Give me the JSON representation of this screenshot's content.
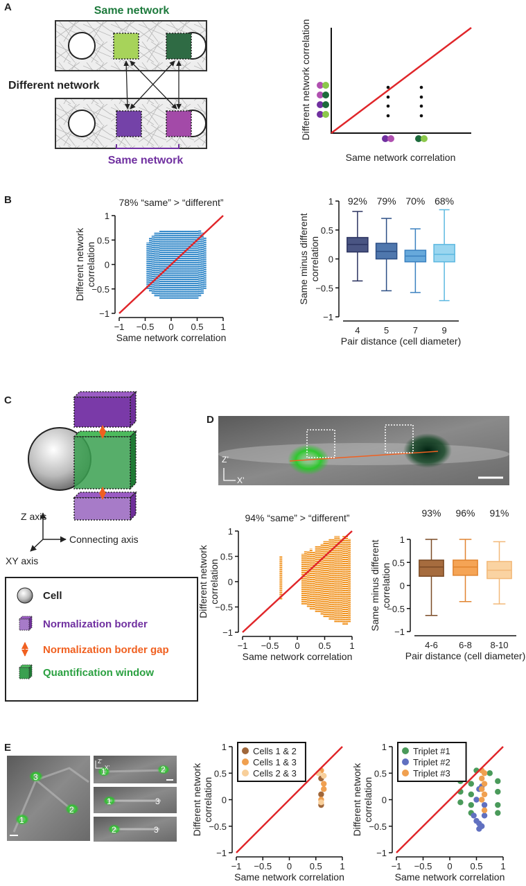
{
  "panel_labels": [
    "A",
    "B",
    "C",
    "D",
    "E"
  ],
  "panel_a": {
    "diagram": {
      "top": "Same network",
      "middle": "Different network",
      "bottom": "Same network"
    },
    "schematic": {
      "xlabel": "Same network correlation",
      "ylabel": "Different network correlation"
    }
  },
  "panel_c": {
    "axes": {
      "z": "Z axis",
      "connecting": "Connecting axis",
      "xy": "XY axis"
    },
    "legend": [
      "Cell",
      "Normalization border",
      "Normalization border gap",
      "Quantification window"
    ]
  },
  "panel_d": {
    "image_axes": [
      "Z’",
      "X’"
    ]
  },
  "panel_e": {
    "image_labels": [
      "3",
      "2",
      "1"
    ],
    "inset_axes": [
      "Z’",
      "X’"
    ],
    "insets": [
      [
        "1",
        "2"
      ],
      [
        "1",
        "3"
      ],
      [
        "2",
        "3"
      ]
    ]
  },
  "chart_data": [
    {
      "type": "strip",
      "title": "78% “same” > “different”",
      "xlabel": "Same network correlation",
      "ylabel": [
        "Different network",
        "correlation"
      ],
      "color": "#2f86c8",
      "identity_line": {
        "color": "#e0262a"
      },
      "x": [
        -0.45,
        -0.4,
        -0.35,
        -0.3,
        -0.25,
        -0.2,
        -0.15,
        -0.1,
        -0.05,
        0,
        0.05,
        0.1,
        0.15,
        0.2,
        0.25,
        0.3,
        0.35,
        0.4,
        0.45,
        0.5,
        0.55,
        0.6,
        0.65
      ],
      "low": [
        -0.5,
        -0.55,
        -0.6,
        -0.65,
        -0.65,
        -0.7,
        -0.7,
        -0.7,
        -0.7,
        -0.7,
        -0.7,
        -0.7,
        -0.7,
        -0.7,
        -0.7,
        -0.7,
        -0.7,
        -0.7,
        -0.7,
        -0.7,
        -0.65,
        -0.6,
        -0.5
      ],
      "high": [
        0.45,
        0.55,
        0.6,
        0.65,
        0.65,
        0.7,
        0.7,
        0.7,
        0.7,
        0.7,
        0.7,
        0.7,
        0.7,
        0.7,
        0.7,
        0.7,
        0.7,
        0.7,
        0.7,
        0.7,
        0.7,
        0.65,
        0.55
      ],
      "xlim": [
        -1,
        1
      ],
      "ylim": [
        -1,
        1
      ],
      "xticks": [
        {
          "value": -1,
          "label": "−1"
        },
        {
          "value": -0.5,
          "label": "−0.5"
        },
        0,
        0.5,
        1
      ],
      "yticks": [
        {
          "value": -1,
          "label": "−1"
        },
        {
          "value": -0.5,
          "label": "−0.5"
        },
        0,
        0.5,
        1
      ]
    },
    {
      "type": "box",
      "xlabel": "Pair distance (cell diameter)",
      "ylabel": [
        "Same minus different",
        "correlation"
      ],
      "categories": [
        "4",
        "5",
        "7",
        "9"
      ],
      "annotations": [
        "92%",
        "79%",
        "70%",
        "68%"
      ],
      "colors": [
        "#4a5583",
        "#4f77ad",
        "#67a9db",
        "#9ad6f0"
      ],
      "edge_colors": [
        "#2b3360",
        "#2d4f85",
        "#3a80bf",
        "#5cb8e0"
      ],
      "boxes": {
        "whisker_low": [
          -0.38,
          -0.55,
          -0.58,
          -0.72
        ],
        "q1": [
          0.12,
          0.0,
          -0.05,
          -0.05
        ],
        "median": [
          0.25,
          0.13,
          0.05,
          0.08
        ],
        "q3": [
          0.37,
          0.27,
          0.15,
          0.25
        ],
        "whisker_high": [
          0.82,
          0.7,
          0.52,
          0.85
        ]
      },
      "ylim": [
        -1,
        1
      ],
      "yticks": [
        {
          "value": -1,
          "label": "−1"
        },
        {
          "value": -0.5,
          "label": "−0.5"
        },
        0,
        0.5,
        1
      ]
    },
    {
      "type": "strip",
      "title": "94% “same” > “different”",
      "xlabel": "Same network correlation",
      "ylabel": [
        "Different network",
        "correlation"
      ],
      "color": "#f0921e",
      "identity_line": {
        "color": "#e0262a"
      },
      "x": [
        -0.3,
        0.1,
        0.15,
        0.2,
        0.25,
        0.3,
        0.35,
        0.4,
        0.45,
        0.5,
        0.55,
        0.6,
        0.65,
        0.7,
        0.75,
        0.8,
        0.85,
        0.9,
        0.95
      ],
      "low": [
        -0.35,
        -0.45,
        -0.45,
        -0.5,
        -0.55,
        -0.55,
        -0.6,
        -0.6,
        -0.65,
        -0.7,
        -0.7,
        -0.75,
        -0.75,
        -0.8,
        -0.8,
        -0.8,
        -0.85,
        -0.85,
        -0.8
      ],
      "high": [
        0.5,
        0.55,
        0.6,
        0.6,
        0.65,
        0.6,
        0.7,
        0.7,
        0.75,
        0.8,
        0.8,
        0.85,
        0.85,
        0.9,
        0.9,
        0.85,
        0.9,
        0.9,
        0.85
      ],
      "xlim": [
        -1,
        1
      ],
      "ylim": [
        -1,
        1
      ],
      "xticks": [
        {
          "value": -1,
          "label": "−1"
        },
        {
          "value": -0.5,
          "label": "−0.5"
        },
        0,
        0.5,
        1
      ],
      "yticks": [
        {
          "value": -1,
          "label": "−1"
        },
        {
          "value": -0.5,
          "label": "−0.5"
        },
        0,
        0.5,
        1
      ]
    },
    {
      "type": "box",
      "xlabel": "Pair distance (cell diameter)",
      "ylabel": [
        "Same minus different",
        "correlation"
      ],
      "categories": [
        "4-6",
        "6-8",
        "8-10"
      ],
      "annotations": [
        "93%",
        "96%",
        "91%"
      ],
      "colors": [
        "#a66c3e",
        "#f5a455",
        "#fad3a2"
      ],
      "edge_colors": [
        "#7a4a25",
        "#e08430",
        "#f2b878"
      ],
      "boxes": {
        "whisker_low": [
          -0.65,
          -0.35,
          -0.4
        ],
        "q1": [
          0.2,
          0.22,
          0.15
        ],
        "median": [
          0.4,
          0.4,
          0.33
        ],
        "q3": [
          0.55,
          0.55,
          0.52
        ],
        "whisker_high": [
          1.0,
          1.0,
          0.95
        ]
      },
      "ylim": [
        -1,
        1
      ],
      "yticks": [
        {
          "value": -1,
          "label": "−1"
        },
        {
          "value": -0.5,
          "label": "−0.5"
        },
        0,
        0.5,
        1
      ]
    },
    {
      "type": "scatter",
      "xlabel": "Same network correlation",
      "ylabel": [
        "Different network",
        "correlation"
      ],
      "identity_line": {
        "color": "#e0262a"
      },
      "legend": "upper left",
      "series": [
        {
          "name": "Cells 1 & 2",
          "color": "#a0673a",
          "x": [
            0.6,
            0.6,
            0.6
          ],
          "y": [
            0.4,
            0.1,
            -0.1
          ]
        },
        {
          "name": "Cells 1 & 3",
          "color": "#f0a050",
          "x": [
            0.6,
            0.65,
            0.6,
            0.65
          ],
          "y": [
            0.55,
            0.3,
            0.0,
            0.2
          ]
        },
        {
          "name": "Cells 2 & 3",
          "color": "#f8cf9a",
          "x": [
            0.55,
            0.65,
            0.6
          ],
          "y": [
            0.5,
            0.45,
            -0.05
          ]
        }
      ],
      "xlim": [
        -1,
        1
      ],
      "ylim": [
        -1,
        1
      ],
      "xticks": [
        {
          "value": -1,
          "label": "−1"
        },
        {
          "value": -0.5,
          "label": "−0.5"
        },
        0,
        0.5,
        1
      ],
      "yticks": [
        {
          "value": -1,
          "label": "−1"
        },
        {
          "value": -0.5,
          "label": "−0.5"
        },
        0,
        0.5,
        1
      ]
    },
    {
      "type": "scatter",
      "xlabel": "Same network correlation",
      "ylabel": [
        "Different network",
        "correlation"
      ],
      "identity_line": {
        "color": "#e0262a"
      },
      "legend": "upper left",
      "series": [
        {
          "name": "Triplet #1",
          "color": "#4a9a5a",
          "x": [
            0.2,
            0.2,
            0.2,
            0.4,
            0.4,
            0.4,
            0.4,
            0.5,
            0.9,
            0.9,
            0.9,
            0.9,
            0.75
          ],
          "y": [
            0.35,
            0.15,
            -0.05,
            0.3,
            0.1,
            -0.1,
            -0.25,
            0.55,
            0.35,
            0.15,
            -0.1,
            -0.25,
            0.5
          ]
        },
        {
          "name": "Triplet #2",
          "color": "#6070c0",
          "x": [
            0.45,
            0.5,
            0.5,
            0.55,
            0.55,
            0.6,
            0.6,
            0.65,
            0.65,
            0.55
          ],
          "y": [
            -0.3,
            0.0,
            -0.4,
            0.2,
            -0.45,
            0.25,
            -0.5,
            -0.3,
            -0.1,
            -0.55
          ]
        },
        {
          "name": "Triplet #3",
          "color": "#f0a050",
          "x": [
            0.6,
            0.6,
            0.6,
            0.6,
            0.65,
            0.65,
            0.65,
            0.65
          ],
          "y": [
            0.55,
            0.4,
            0.2,
            0.0,
            0.5,
            0.3,
            0.1,
            -0.2
          ]
        }
      ],
      "xlim": [
        -1,
        1
      ],
      "ylim": [
        -1,
        1
      ],
      "xticks": [
        {
          "value": -1,
          "label": "−1"
        },
        {
          "value": -0.5,
          "label": "−0.5"
        },
        0,
        0.5,
        1
      ],
      "yticks": [
        {
          "value": -1,
          "label": "−1"
        },
        {
          "value": -0.5,
          "label": "−0.5"
        },
        0,
        0.5,
        1
      ]
    }
  ]
}
